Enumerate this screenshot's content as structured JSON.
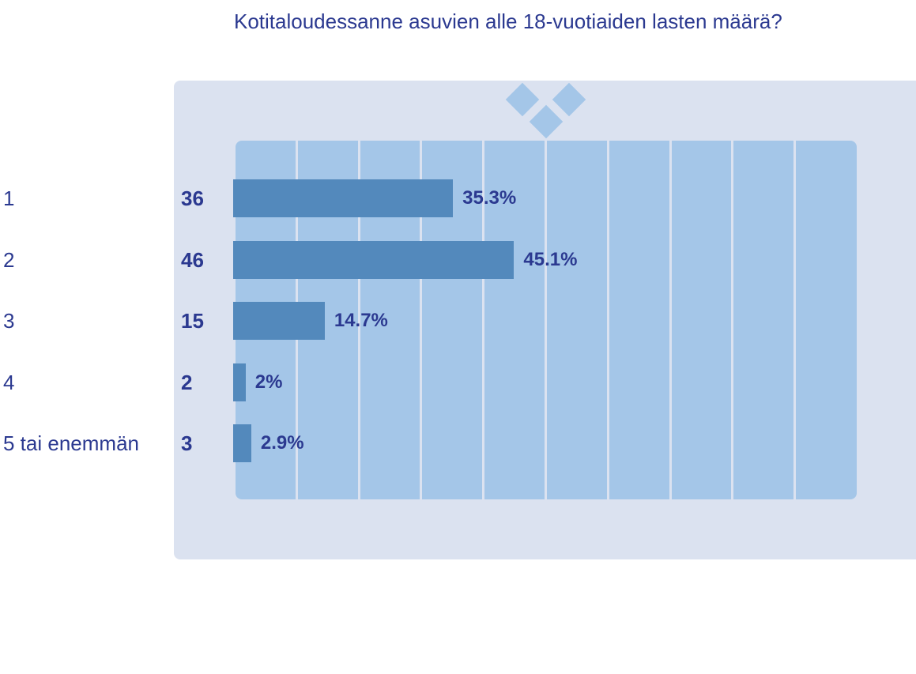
{
  "chart_data": {
    "type": "bar",
    "orientation": "horizontal",
    "title": "Kotitaloudessanne asuvien alle 18-vuotiaiden lasten määrä?",
    "categories": [
      "1",
      "2",
      "3",
      "4",
      "5 tai enemmän"
    ],
    "counts": [
      "36",
      "46",
      "15",
      "2",
      "3"
    ],
    "values": [
      35.3,
      45.1,
      14.7,
      2,
      2.9
    ],
    "value_labels": [
      "35.3%",
      "45.1%",
      "14.7%",
      "2%",
      "2.9%"
    ],
    "xlim": [
      0,
      100
    ],
    "grid": true,
    "gridline_count": 9
  },
  "colors": {
    "title": "#2b3990",
    "bar": "#5389bc",
    "plot_background": "#a4c6e8",
    "panel_background": "#dbe2f0"
  }
}
